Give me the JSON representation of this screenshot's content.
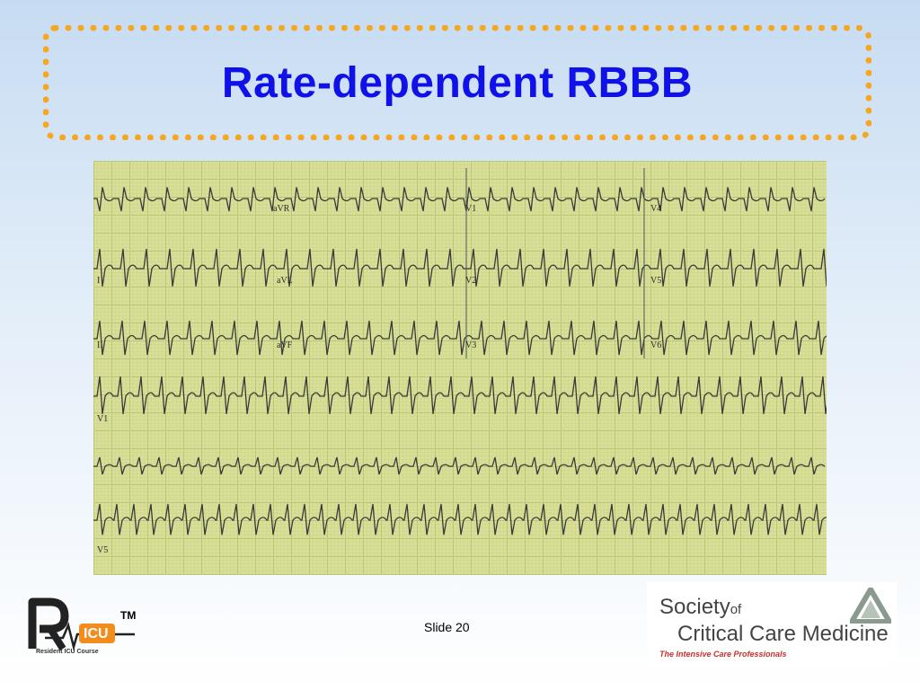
{
  "slide": {
    "title": "Rate-dependent RBBB",
    "number_label": "Slide 20"
  },
  "ecg": {
    "leads": [
      [
        "aVR",
        "V1",
        "V4"
      ],
      [
        "I",
        "aVL",
        "V2",
        "V5"
      ],
      [
        "II",
        "aVF",
        "V3",
        "V6"
      ],
      [
        "V1"
      ],
      [],
      [
        "V5"
      ]
    ],
    "paper_color": "#d9df97",
    "trace_color": "#3a3a3a"
  },
  "logos": {
    "ricu": {
      "mark": "R",
      "badge": "ICU",
      "tm": "TM",
      "tagline": "Resident ICU Course"
    },
    "sccm": {
      "society": "Society",
      "of": "of",
      "ccm": "Critical Care Medicine",
      "tagline": "The Intensive Care Professionals"
    }
  },
  "colors": {
    "title": "#1010e8",
    "border": "#f5a623"
  }
}
